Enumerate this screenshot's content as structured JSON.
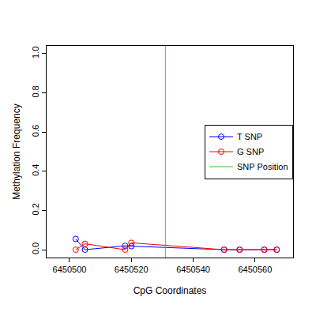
{
  "chart_data": {
    "type": "scatter",
    "x_label": "CpG Coordinates",
    "y_label": "Methylation Frequency",
    "xlim": [
      6450492.6,
      6450572.3
    ],
    "ylim": [
      -0.04,
      1.04
    ],
    "xticks": [
      6450500,
      6450520,
      6450540,
      6450560
    ],
    "yticks": [
      {
        "value": 0,
        "label": "0.0"
      },
      {
        "value": 0.2,
        "label": "0.2"
      },
      {
        "value": 0.4,
        "label": "0.4"
      },
      {
        "value": 0.6,
        "label": "0.6"
      },
      {
        "value": 0.8,
        "label": "0.8"
      },
      {
        "value": 1,
        "label": "1.0"
      }
    ],
    "grid": false,
    "legend": "right",
    "series": [
      {
        "name": "T SNP",
        "color": "#0000ff",
        "marker": "circle-open",
        "line_style": "solid",
        "x": [
          6450502,
          6450505,
          6450518,
          6450520,
          6450550,
          6450555,
          6450563,
          6450567
        ],
        "values": [
          0.055,
          0.0,
          0.02,
          0.018,
          0.0,
          0.0,
          0.0,
          0.0
        ]
      },
      {
        "name": "G SNP",
        "color": "#ff0000",
        "marker": "circle-open",
        "line_style": "solid",
        "x": [
          6450502,
          6450505,
          6450518,
          6450520,
          6450550,
          6450555,
          6450563,
          6450567
        ],
        "values": [
          0.0,
          0.03,
          0.0,
          0.035,
          0.0,
          0.0,
          0.0,
          0.0
        ]
      },
      {
        "name": "SNP Position",
        "color": "#33cc33",
        "type": "vline",
        "line_style": "solid",
        "x": 6450531
      }
    ]
  }
}
